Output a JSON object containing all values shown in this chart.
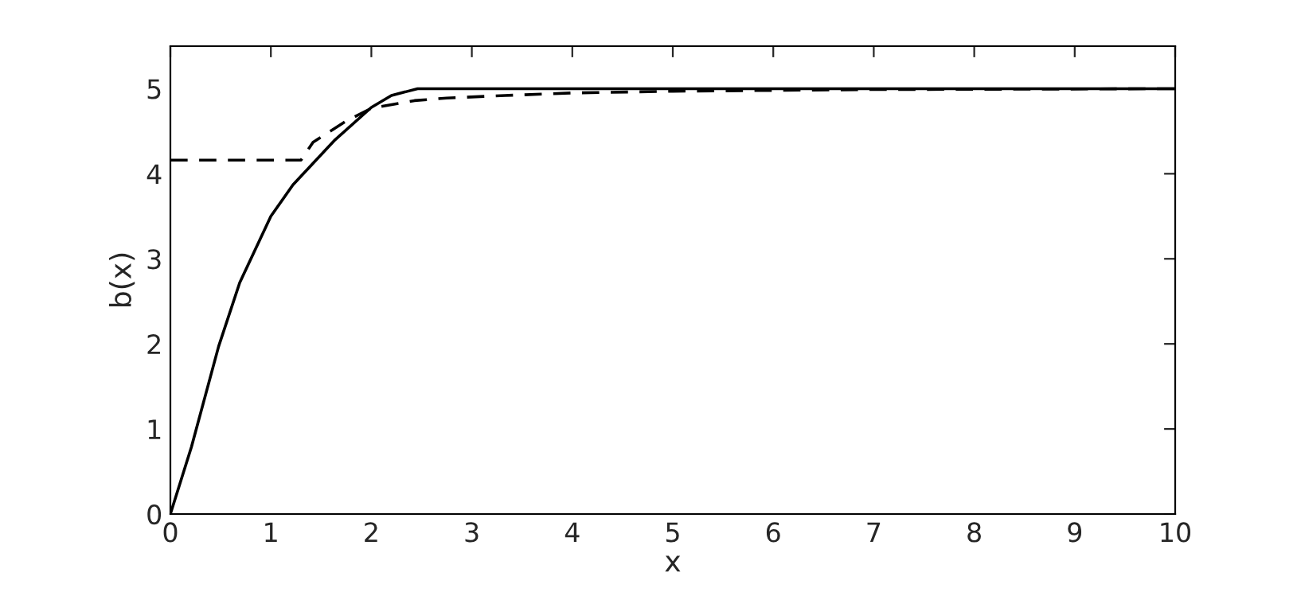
{
  "chart_data": {
    "type": "line",
    "xlabel": "x",
    "ylabel": "b(x)",
    "xlim": [
      0,
      10
    ],
    "ylim": [
      0,
      5.5
    ],
    "xticks": [
      0,
      1,
      2,
      3,
      4,
      5,
      6,
      7,
      8,
      9,
      10
    ],
    "yticks": [
      0,
      1,
      2,
      3,
      4,
      5
    ],
    "grid": false,
    "legend": false,
    "series": [
      {
        "color": "#000000",
        "line_style": "solid",
        "x": [
          0,
          0.21,
          0.48,
          0.69,
          1.0,
          1.22,
          1.64,
          2.0,
          2.2,
          2.46,
          3,
          5,
          10
        ],
        "values": [
          0,
          0.79,
          1.97,
          2.72,
          3.5,
          3.87,
          4.4,
          4.78,
          4.92,
          5.0,
          5.0,
          5.0,
          5.0
        ]
      },
      {
        "color": "#000000",
        "line_style": "dashed",
        "x": [
          0,
          1.3,
          1.42,
          1.75,
          2.0,
          2.43,
          2.75,
          3.33,
          4,
          5,
          7,
          10
        ],
        "values": [
          4.16,
          4.16,
          4.37,
          4.62,
          4.77,
          4.86,
          4.89,
          4.92,
          4.95,
          4.97,
          4.99,
          5.0
        ]
      }
    ]
  }
}
